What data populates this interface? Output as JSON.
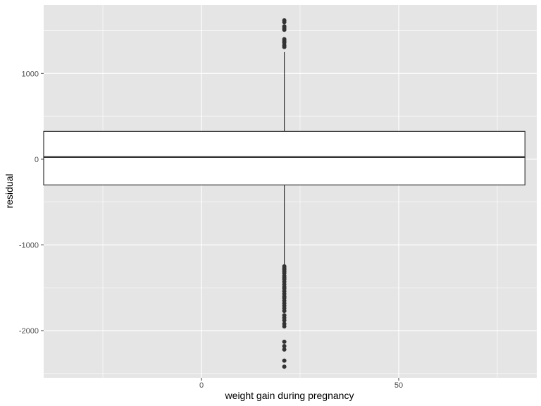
{
  "chart_data": {
    "type": "boxplot",
    "xlabel": "weight gain during pregnancy",
    "ylabel": "residual",
    "xlim": [
      -40,
      85
    ],
    "ylim": [
      -2550,
      1800
    ],
    "x_ticks": [
      0,
      50
    ],
    "x_tick_labels": [
      "0",
      "50"
    ],
    "y_ticks": [
      -2000,
      -1000,
      0,
      1000
    ],
    "y_tick_labels": [
      "-2000",
      "-1000",
      "0",
      "1000"
    ],
    "box": {
      "x_center": 21,
      "x_min": -40,
      "x_max": 82,
      "q1": -300,
      "median": 25,
      "q3": 325,
      "whisker_low": -1240,
      "whisker_high": 1250
    },
    "outliers": [
      1620,
      1600,
      1550,
      1530,
      1510,
      1400,
      1380,
      1360,
      1330,
      1310,
      -1250,
      -1270,
      -1290,
      -1310,
      -1330,
      -1360,
      -1380,
      -1400,
      -1430,
      -1460,
      -1490,
      -1510,
      -1540,
      -1570,
      -1600,
      -1620,
      -1650,
      -1680,
      -1710,
      -1740,
      -1770,
      -1820,
      -1850,
      -1880,
      -1920,
      -1950,
      -2130,
      -2180,
      -2220,
      -2350,
      -2420
    ],
    "grid": true,
    "colors": {
      "panel_background": "#e5e5e5",
      "grid_line": "#ffffff",
      "box_fill": "#ffffff",
      "box_stroke": "#333333",
      "outlier": "#333333"
    }
  }
}
